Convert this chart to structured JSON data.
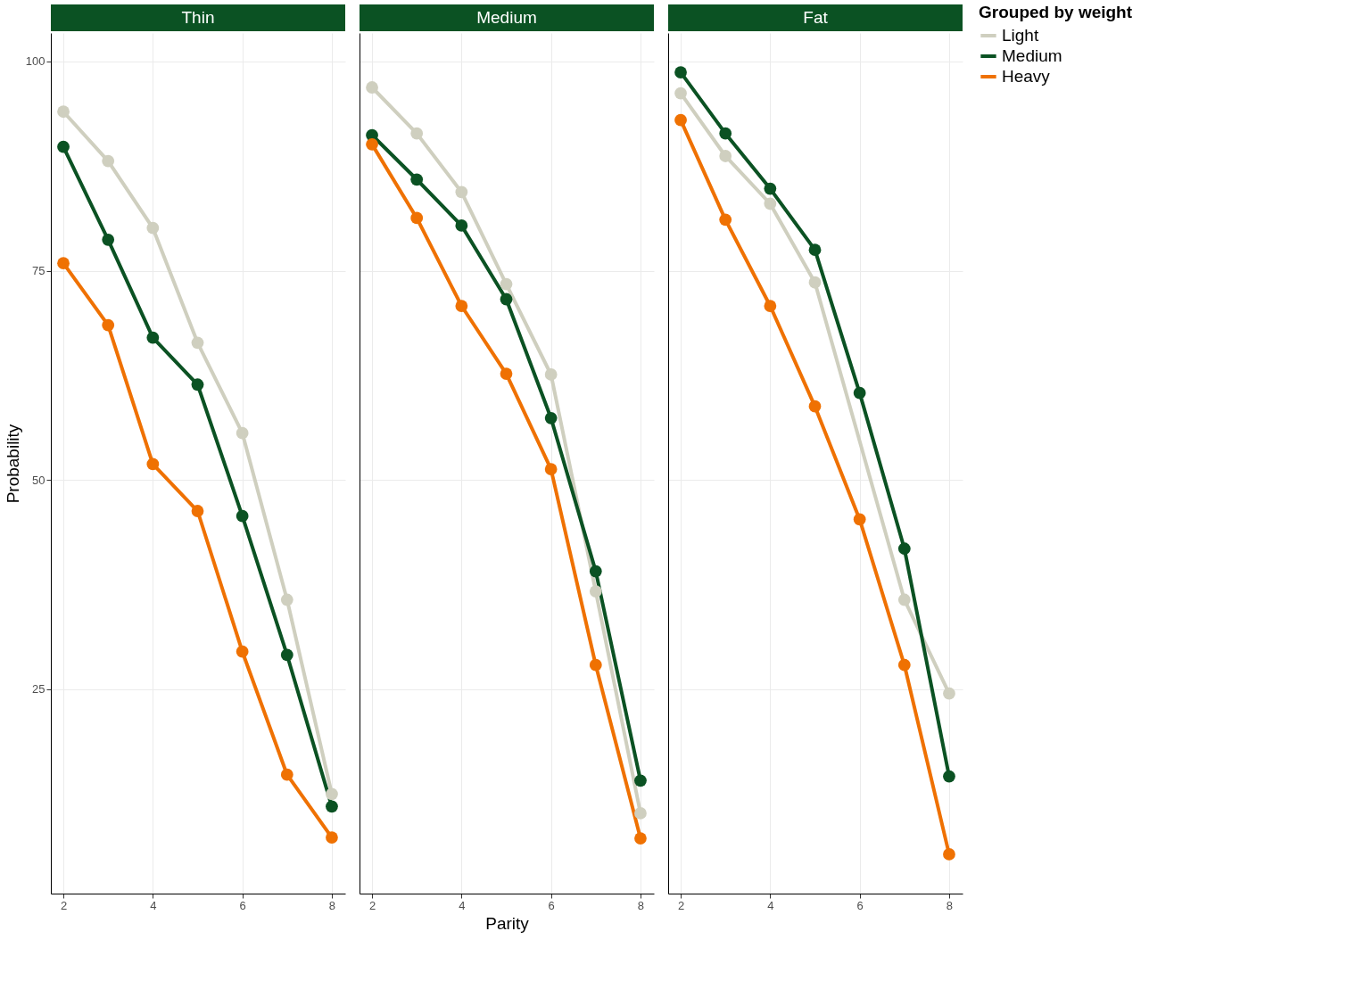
{
  "chart_data": [
    {
      "type": "line",
      "title": "Thin",
      "ylabel": "Probability",
      "x": [
        2,
        3,
        4,
        5,
        6,
        7,
        8
      ],
      "xlim": [
        1.72,
        8.3
      ],
      "ylim": [
        0.6,
        103.4
      ],
      "xticks": [
        2,
        4,
        6,
        8
      ],
      "yticks": [
        25,
        50,
        75,
        100
      ],
      "grid": true,
      "marker": "circle",
      "line_style": "solid",
      "legend": false,
      "series": [
        {
          "color": "#cfcfbf",
          "values": [
            94.0,
            88.1,
            80.1,
            66.4,
            55.6,
            35.7,
            12.5
          ]
        },
        {
          "color": "#0b5223",
          "values": [
            89.8,
            78.7,
            67.0,
            61.4,
            45.7,
            29.1,
            11.0
          ]
        },
        {
          "color": "#ef7102",
          "values": [
            75.9,
            68.5,
            51.9,
            46.3,
            29.5,
            14.8,
            7.3
          ]
        }
      ]
    },
    {
      "type": "line",
      "title": "Medium",
      "xlabel": "Parity",
      "x": [
        2,
        3,
        4,
        5,
        6,
        7,
        8
      ],
      "xlim": [
        1.72,
        8.3
      ],
      "ylim": [
        0.6,
        103.4
      ],
      "xticks": [
        2,
        4,
        6,
        8
      ],
      "yticks": [
        25,
        50,
        75,
        100
      ],
      "grid": true,
      "marker": "circle",
      "line_style": "solid",
      "legend": false,
      "tick_labels": "x",
      "series": [
        {
          "color": "#cfcfbf",
          "values": [
            96.9,
            91.4,
            84.4,
            73.4,
            62.6,
            36.7,
            10.2
          ]
        },
        {
          "color": "#0b5223",
          "values": [
            91.2,
            85.9,
            80.4,
            71.6,
            57.4,
            39.1,
            14.1
          ]
        },
        {
          "color": "#ef7102",
          "values": [
            90.1,
            81.3,
            70.8,
            62.7,
            51.3,
            27.9,
            7.2
          ]
        }
      ]
    },
    {
      "type": "line",
      "title": "Fat",
      "legend_title": "Grouped by weight",
      "x": [
        2,
        3,
        4,
        5,
        6,
        7,
        8
      ],
      "xlim": [
        1.72,
        8.3
      ],
      "ylim": [
        0.6,
        103.4
      ],
      "xticks": [
        2,
        4,
        6,
        8
      ],
      "yticks": [
        25,
        50,
        75,
        100
      ],
      "grid": true,
      "marker": "circle",
      "line_style": "solid",
      "legend": "right",
      "tick_labels": "x",
      "series": [
        {
          "name": "Light",
          "color": "#cfcfbf",
          "values": [
            96.2,
            88.7,
            83.0,
            73.6,
            null,
            35.7,
            24.5
          ]
        },
        {
          "name": "Medium",
          "color": "#0b5223",
          "values": [
            98.7,
            91.4,
            84.8,
            77.5,
            60.4,
            41.8,
            14.6
          ]
        },
        {
          "name": "Heavy",
          "color": "#ef7102",
          "values": [
            93.0,
            81.1,
            70.8,
            58.8,
            45.3,
            27.9,
            5.3
          ]
        }
      ]
    }
  ]
}
